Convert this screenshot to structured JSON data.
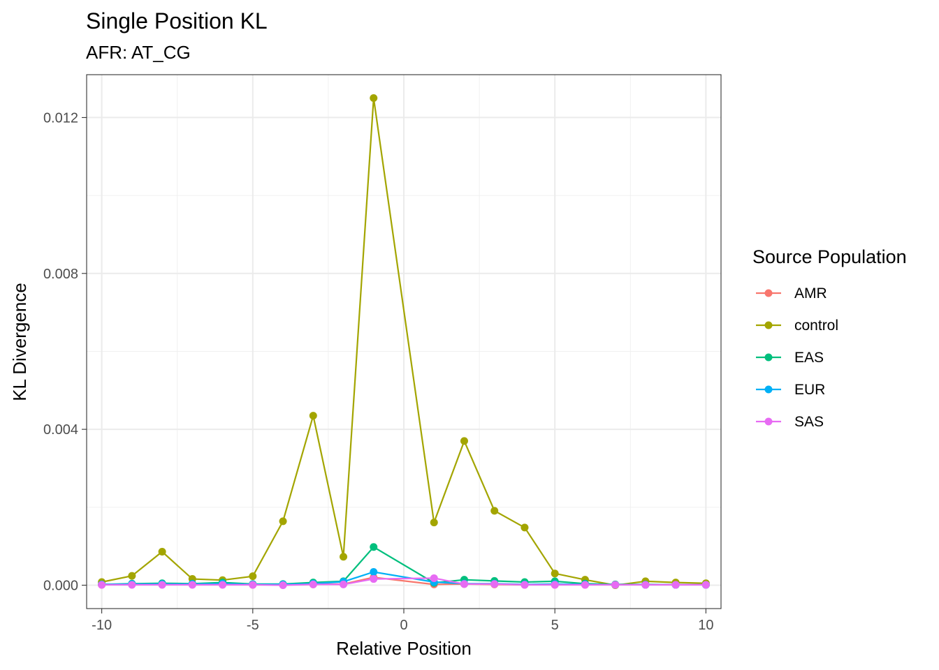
{
  "chart_data": {
    "type": "line",
    "title": "Single Position KL",
    "subtitle": "AFR: AT_CG",
    "xlabel": "Relative Position",
    "ylabel": "KL Divergence",
    "xlim": [
      -10.5,
      10.5
    ],
    "ylim": [
      -0.0006,
      0.0131
    ],
    "x_ticks": [
      -10,
      -5,
      0,
      5,
      10
    ],
    "x_tick_labels": [
      "-10",
      "-5",
      "0",
      "5",
      "10"
    ],
    "y_ticks": [
      0.0,
      0.004,
      0.008,
      0.012
    ],
    "y_tick_labels": [
      "0.000",
      "0.004",
      "0.008",
      "0.012"
    ],
    "grid": true,
    "legend_title": "Source Population",
    "legend_position": "right",
    "x": [
      -10,
      -9,
      -8,
      -7,
      -6,
      -5,
      -4,
      -3,
      -2,
      -1,
      1,
      2,
      3,
      4,
      5,
      6,
      7,
      8,
      9,
      10
    ],
    "series": [
      {
        "name": "AMR",
        "color": "#F8766D",
        "values": [
          1e-05,
          2e-05,
          2e-05,
          2e-05,
          2e-05,
          1e-05,
          1e-05,
          2e-05,
          3e-05,
          0.0002,
          2e-05,
          3e-05,
          2e-05,
          1e-05,
          1e-05,
          1e-05,
          1e-05,
          1e-05,
          1e-05,
          1e-05
        ]
      },
      {
        "name": "control",
        "color": "#A3A500",
        "values": [
          8e-05,
          0.00024,
          0.00086,
          0.00016,
          0.00013,
          0.00023,
          0.00164,
          0.00435,
          0.00073,
          0.0125,
          0.00161,
          0.0037,
          0.00191,
          0.00148,
          0.0003,
          0.00014,
          0.0,
          0.0001,
          7e-05,
          5e-05
        ]
      },
      {
        "name": "EAS",
        "color": "#00BF7D",
        "values": [
          2e-05,
          4e-05,
          5e-05,
          4e-05,
          7e-05,
          3e-05,
          3e-05,
          7e-05,
          0.0001,
          0.00098,
          6e-05,
          0.00014,
          0.00011,
          8e-05,
          0.0001,
          4e-05,
          2e-05,
          2e-05,
          1e-05,
          1e-05
        ]
      },
      {
        "name": "EUR",
        "color": "#00B0F6",
        "values": [
          2e-05,
          3e-05,
          3e-05,
          3e-05,
          4e-05,
          2e-05,
          2e-05,
          4e-05,
          9e-05,
          0.00034,
          8e-05,
          4e-05,
          4e-05,
          2e-05,
          3e-05,
          2e-05,
          1e-05,
          1e-05,
          1e-05,
          1e-05
        ]
      },
      {
        "name": "SAS",
        "color": "#E76BF3",
        "values": [
          1e-05,
          1e-05,
          1e-05,
          1e-05,
          1e-05,
          1e-05,
          0.0,
          2e-05,
          2e-05,
          0.00016,
          0.00018,
          3e-05,
          3e-05,
          1e-05,
          1e-05,
          1e-05,
          1e-05,
          1e-05,
          1e-05,
          1e-05
        ]
      }
    ]
  }
}
